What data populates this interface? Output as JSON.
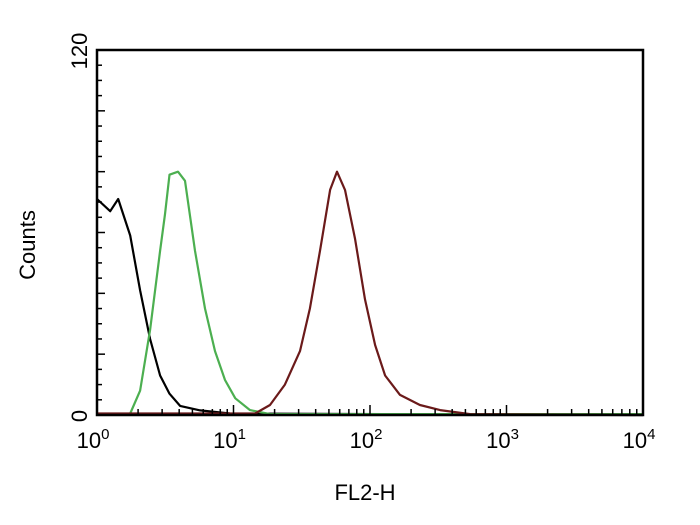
{
  "chart_data": {
    "type": "line",
    "title": "",
    "xlabel": "FL2-H",
    "ylabel": "Counts",
    "xscale": "log",
    "xlim": [
      1,
      10000
    ],
    "ylim": [
      0,
      120
    ],
    "x_ticks": [
      {
        "base": "10",
        "exp": "0"
      },
      {
        "base": "10",
        "exp": "1"
      },
      {
        "base": "10",
        "exp": "2"
      },
      {
        "base": "10",
        "exp": "3"
      },
      {
        "base": "10",
        "exp": "4"
      }
    ],
    "y_ticks": [
      "0",
      "120"
    ],
    "grid": false,
    "series": [
      {
        "color": "#000000",
        "points": [
          [
            1,
            71
          ],
          [
            1.25,
            67
          ],
          [
            1.43,
            71
          ],
          [
            1.75,
            59
          ],
          [
            2.07,
            41
          ],
          [
            2.45,
            25
          ],
          [
            2.9,
            13
          ],
          [
            3.4,
            7
          ],
          [
            4.06,
            3
          ],
          [
            5.7,
            1.5
          ],
          [
            9.4,
            0.5
          ],
          [
            10000,
            0
          ]
        ]
      },
      {
        "color": "#4caf50",
        "points": [
          [
            1.75,
            0.5
          ],
          [
            2.07,
            8
          ],
          [
            2.45,
            28
          ],
          [
            2.9,
            54
          ],
          [
            3.15,
            66
          ],
          [
            3.4,
            79
          ],
          [
            3.92,
            80
          ],
          [
            4.41,
            77
          ],
          [
            5.22,
            54
          ],
          [
            6.18,
            35
          ],
          [
            7.32,
            21
          ],
          [
            8.66,
            11.5
          ],
          [
            10.3,
            5.5
          ],
          [
            13.2,
            1.6
          ],
          [
            18.5,
            0.3
          ],
          [
            10000,
            0.3
          ]
        ]
      },
      {
        "color": "#6b1a1a",
        "points": [
          [
            1,
            0.5
          ],
          [
            14.4,
            0.5
          ],
          [
            18.5,
            3.3
          ],
          [
            23.8,
            10
          ],
          [
            30.7,
            21
          ],
          [
            36.3,
            35
          ],
          [
            43,
            54
          ],
          [
            51,
            74
          ],
          [
            57.3,
            80
          ],
          [
            65.6,
            74
          ],
          [
            77.6,
            58
          ],
          [
            91.9,
            38
          ],
          [
            109,
            23
          ],
          [
            129,
            13
          ],
          [
            166,
            6.6
          ],
          [
            232,
            3.3
          ],
          [
            326,
            1.6
          ],
          [
            540,
            0.3
          ],
          [
            10000,
            0
          ]
        ]
      }
    ]
  }
}
